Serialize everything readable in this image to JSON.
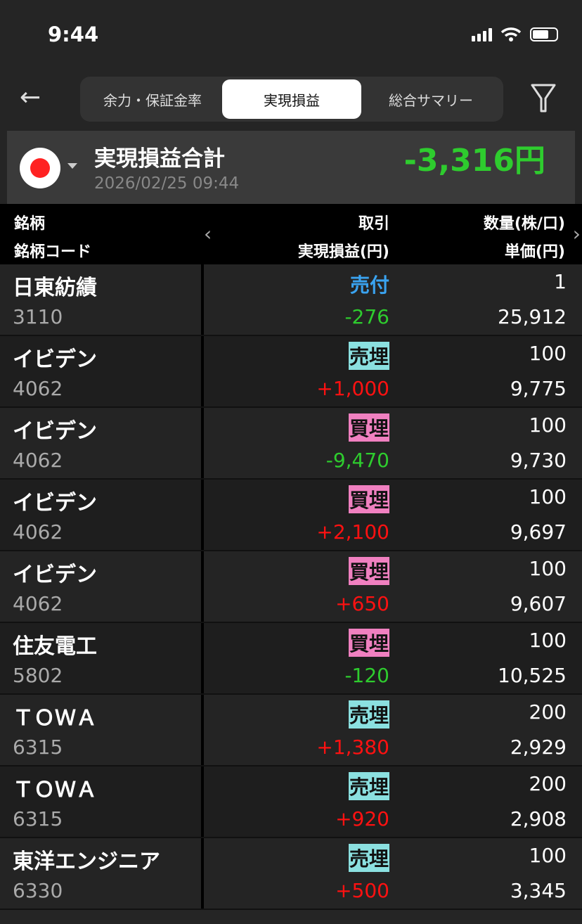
{
  "status_bar": {
    "time": "9:44"
  },
  "nav": {
    "tabs": [
      {
        "label": "余力・保証金率",
        "active": false
      },
      {
        "label": "実現損益",
        "active": true
      },
      {
        "label": "総合サマリー",
        "active": false
      }
    ]
  },
  "summary": {
    "title": "実現損益合計",
    "datetime": "2026/02/25 09:44",
    "total": "-3,316円",
    "market_flag": "japan-flag-icon"
  },
  "columns": {
    "name": "銘柄",
    "code": "銘柄コード",
    "trade": "取引",
    "pl": "実現損益(円)",
    "qty": "数量(株/口)",
    "price": "単価(円)"
  },
  "colors": {
    "positive": "#ff1111",
    "negative": "#2ecc2e",
    "sell_close_bg": "#8be0e0",
    "buy_close_bg": "#f080c0",
    "sell_open": "#3aa3f0"
  },
  "rows": [
    {
      "name": "日東紡績",
      "code": "3110",
      "trade": "売付",
      "type": "buy",
      "pl": "-276",
      "sign": "neg",
      "qty": "1",
      "price": "25,912"
    },
    {
      "name": "イビデン",
      "code": "4062",
      "trade": "売埋",
      "type": "sellclose",
      "pl": "+1,000",
      "sign": "pos",
      "qty": "100",
      "price": "9,775"
    },
    {
      "name": "イビデン",
      "code": "4062",
      "trade": "買埋",
      "type": "buyclose",
      "pl": "-9,470",
      "sign": "neg",
      "qty": "100",
      "price": "9,730"
    },
    {
      "name": "イビデン",
      "code": "4062",
      "trade": "買埋",
      "type": "buyclose",
      "pl": "+2,100",
      "sign": "pos",
      "qty": "100",
      "price": "9,697"
    },
    {
      "name": "イビデン",
      "code": "4062",
      "trade": "買埋",
      "type": "buyclose",
      "pl": "+650",
      "sign": "pos",
      "qty": "100",
      "price": "9,607"
    },
    {
      "name": "住友電工",
      "code": "5802",
      "trade": "買埋",
      "type": "buyclose",
      "pl": "-120",
      "sign": "neg",
      "qty": "100",
      "price": "10,525"
    },
    {
      "name": "ＴＯＷＡ",
      "code": "6315",
      "trade": "売埋",
      "type": "sellclose",
      "pl": "+1,380",
      "sign": "pos",
      "qty": "200",
      "price": "2,929"
    },
    {
      "name": "ＴＯＷＡ",
      "code": "6315",
      "trade": "売埋",
      "type": "sellclose",
      "pl": "+920",
      "sign": "pos",
      "qty": "200",
      "price": "2,908"
    },
    {
      "name": "東洋エンジニア",
      "code": "6330",
      "trade": "売埋",
      "type": "sellclose",
      "pl": "+500",
      "sign": "pos",
      "qty": "100",
      "price": "3,345"
    }
  ]
}
